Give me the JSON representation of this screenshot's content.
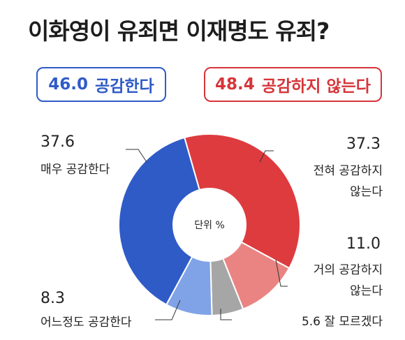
{
  "title": "이화영이 유죄면 이재명도 유죄?",
  "summary": {
    "agree": {
      "value": "46.0",
      "label": "공감한다",
      "color": "#2f5bc7"
    },
    "disagree": {
      "value": "48.4",
      "label": "공감하지 않는다",
      "color": "#d6353a"
    }
  },
  "chart_data": {
    "type": "pie",
    "title": "이화영이 유죄면 이재명도 유죄?",
    "center_label": "단위 %",
    "slices": [
      {
        "label": "전혀 공감하지 않는다",
        "value": 37.3,
        "color": "#de3b3f"
      },
      {
        "label": "거의 공감하지 않는다",
        "value": 11.0,
        "color": "#e98482"
      },
      {
        "label": "잘 모르겠다",
        "value": 5.6,
        "color": "#a6a6a6"
      },
      {
        "label": "어느정도 공감한다",
        "value": 8.3,
        "color": "#7fa3e6"
      },
      {
        "label": "매우 공감한다",
        "value": 37.6,
        "color": "#2f5bc7"
      }
    ]
  },
  "labels": {
    "strongly_agree": {
      "value": "37.6",
      "text": "매우 공감한다"
    },
    "strongly_disagree": {
      "value": "37.3",
      "line1": "전혀 공감하지",
      "line2": "않는다"
    },
    "mostly_disagree": {
      "value": "11.0",
      "line1": "거의 공감하지",
      "line2": "않는다"
    },
    "somewhat_agree": {
      "value": "8.3",
      "text": "어느정도 공감한다"
    },
    "unsure": {
      "text": "5.6 잘 모르겠다"
    }
  }
}
